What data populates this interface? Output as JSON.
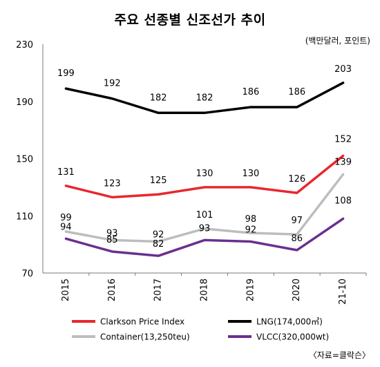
{
  "title": "주요 선종별 신조선가 추이",
  "unit": "(백만달러, 포인트)",
  "source": "〈자료=클락슨〉",
  "chart_data": {
    "type": "line",
    "title": "주요 선종별 신조선가 추이",
    "xlabel": "",
    "ylabel": "",
    "x": [
      "2015",
      "2016",
      "2017",
      "2018",
      "2019",
      "2020",
      "21-10"
    ],
    "ylim": [
      70,
      230
    ],
    "yticks": [
      70,
      110,
      150,
      190,
      230
    ],
    "grid": false,
    "legend": "bottom",
    "series": [
      {
        "name": "LNG(174,000㎥)",
        "color": "#000000",
        "values": [
          199,
          192,
          182,
          182,
          186,
          186,
          203
        ],
        "labels": [
          "199",
          "192",
          "182",
          "182",
          "186",
          "186",
          "203"
        ]
      },
      {
        "name": "Clarkson Price Index",
        "color": "#e8272d",
        "values": [
          131,
          123,
          125,
          130,
          130,
          126,
          152
        ],
        "labels": [
          "131",
          "123",
          "125",
          "130",
          "130",
          "126",
          "152"
        ]
      },
      {
        "name": "Container(13,250teu)",
        "color": "#bdbdbd",
        "values": [
          99,
          93,
          92,
          101,
          98,
          97,
          139
        ],
        "labels": [
          "99",
          "93",
          "92",
          "101",
          "98",
          "97",
          "139"
        ]
      },
      {
        "name": "VLCC(320,000wt)",
        "color": "#6a2f8f",
        "values": [
          94,
          85,
          82,
          93,
          92,
          86,
          108
        ],
        "labels": [
          "94",
          "85",
          "82",
          "93",
          "92",
          "86",
          "108"
        ]
      }
    ]
  }
}
